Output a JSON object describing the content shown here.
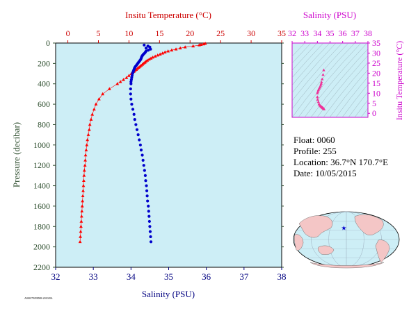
{
  "info": {
    "float_line": "Float:  0060",
    "profile_line": "Profile:  255",
    "location_line": "Location:  36.7°N  170.7°E",
    "date_line": "Date:  10/05/2015"
  },
  "footer_code": "A000/7E09D08-2010/8A",
  "chart_data": [
    {
      "type": "scatter",
      "name": "profile",
      "xlabel_top": "Insitu Temperature (°C)",
      "xlabel_bottom": "Salinity (PSU)",
      "ylabel": "Pressure (decibar)",
      "temperature_ticks": [
        "0",
        "5",
        "10",
        "15",
        "20",
        "25",
        "30",
        "35"
      ],
      "salinity_ticks": [
        "32",
        "33",
        "34",
        "35",
        "36",
        "37",
        "38"
      ],
      "pressure_ticks": [
        "0",
        "200",
        "400",
        "600",
        "800",
        "1000",
        "1200",
        "1400",
        "1600",
        "1800",
        "2000",
        "2200"
      ],
      "temperature_xlim": [
        -2,
        35
      ],
      "salinity_xlim": [
        32,
        38
      ],
      "ylim": [
        0,
        2200
      ],
      "colors": {
        "temperature": "#ff0000",
        "salinity": "#0000cc",
        "background": "#cdeef6"
      },
      "temperature": {
        "pressure": [
          5,
          10,
          15,
          20,
          30,
          40,
          50,
          60,
          70,
          80,
          90,
          100,
          110,
          120,
          130,
          140,
          150,
          160,
          170,
          180,
          190,
          200,
          210,
          220,
          230,
          240,
          250,
          260,
          270,
          280,
          290,
          300,
          320,
          340,
          360,
          380,
          400,
          450,
          500,
          550,
          600,
          650,
          700,
          750,
          800,
          850,
          900,
          950,
          1000,
          1050,
          1100,
          1150,
          1200,
          1250,
          1300,
          1350,
          1400,
          1450,
          1500,
          1550,
          1600,
          1650,
          1700,
          1750,
          1800,
          1850,
          1900,
          1950
        ],
        "values": [
          22.5,
          22.2,
          21.8,
          21.5,
          20.5,
          19.2,
          18.4,
          17.7,
          17.0,
          16.4,
          15.9,
          15.5,
          15.1,
          14.7,
          14.3,
          13.9,
          13.6,
          13.3,
          13.0,
          12.8,
          12.6,
          12.4,
          12.2,
          12.0,
          11.8,
          11.6,
          11.4,
          11.2,
          11.0,
          10.8,
          10.6,
          10.4,
          10.0,
          9.6,
          9.1,
          8.6,
          8.1,
          6.8,
          5.7,
          5.1,
          4.6,
          4.3,
          4.0,
          3.8,
          3.6,
          3.5,
          3.35,
          3.2,
          3.1,
          3.0,
          2.9,
          2.85,
          2.8,
          2.7,
          2.65,
          2.6,
          2.55,
          2.5,
          2.45,
          2.4,
          2.35,
          2.3,
          2.25,
          2.2,
          2.15,
          2.1,
          2.05,
          2.0
        ]
      },
      "salinity": {
        "pressure": [
          20,
          30,
          40,
          50,
          60,
          70,
          80,
          90,
          100,
          110,
          120,
          130,
          140,
          150,
          160,
          170,
          180,
          190,
          200,
          210,
          220,
          230,
          240,
          250,
          260,
          270,
          280,
          290,
          300,
          320,
          340,
          360,
          380,
          400,
          450,
          500,
          550,
          600,
          650,
          700,
          750,
          800,
          850,
          900,
          950,
          1000,
          1050,
          1100,
          1150,
          1200,
          1250,
          1300,
          1350,
          1400,
          1450,
          1500,
          1550,
          1600,
          1650,
          1700,
          1750,
          1800,
          1850,
          1900,
          1950
        ],
        "values": [
          34.35,
          34.45,
          34.5,
          34.4,
          34.52,
          34.46,
          34.4,
          34.38,
          34.36,
          34.33,
          34.31,
          34.29,
          34.28,
          34.27,
          34.26,
          34.24,
          34.22,
          34.2,
          34.18,
          34.16,
          34.14,
          34.12,
          34.1,
          34.09,
          34.08,
          34.07,
          34.06,
          34.05,
          34.04,
          34.03,
          34.02,
          34.01,
          34.0,
          34.0,
          33.99,
          33.99,
          34.0,
          34.02,
          34.05,
          34.08,
          34.1,
          34.13,
          34.16,
          34.19,
          34.22,
          34.25,
          34.27,
          34.3,
          34.32,
          34.34,
          34.36,
          34.38,
          34.39,
          34.41,
          34.42,
          34.43,
          34.44,
          34.46,
          34.47,
          34.48,
          34.49,
          34.5,
          34.51,
          34.52,
          34.53
        ]
      }
    },
    {
      "type": "scatter",
      "name": "ts-diagram",
      "xlabel": "Salinity (PSU)",
      "ylabel": "Insitu Temperature (°C)",
      "x_ticks": [
        "32",
        "33",
        "34",
        "35",
        "36",
        "37",
        "38"
      ],
      "y_ticks": [
        "0",
        "5",
        "10",
        "15",
        "20",
        "25",
        "30",
        "35"
      ],
      "xlim": [
        32,
        38
      ],
      "ylim": [
        -2,
        35
      ],
      "color": "#ee3399",
      "points_salinity": [
        34.5,
        34.45,
        34.38,
        34.33,
        34.3,
        34.26,
        34.2,
        34.14,
        34.08,
        34.04,
        34.0,
        34.0,
        34.02,
        34.08,
        34.13,
        34.19,
        34.25,
        34.3,
        34.34,
        34.38,
        34.41,
        34.44,
        34.47,
        34.5,
        34.53
      ],
      "points_temperature": [
        21.5,
        19.2,
        17.0,
        15.5,
        14.7,
        13.9,
        13.0,
        12.4,
        11.6,
        10.8,
        10.0,
        8.1,
        6.8,
        5.7,
        4.6,
        4.0,
        3.6,
        3.35,
        3.1,
        2.9,
        2.75,
        2.6,
        2.45,
        2.25,
        2.05
      ]
    },
    {
      "type": "map",
      "name": "float-location",
      "marker": {
        "lat": 36.7,
        "lon": 170.7,
        "symbol": "★",
        "color": "#0000cc"
      },
      "land_color": "#f4c6c6",
      "ocean_color": "#cdeef6"
    }
  ]
}
